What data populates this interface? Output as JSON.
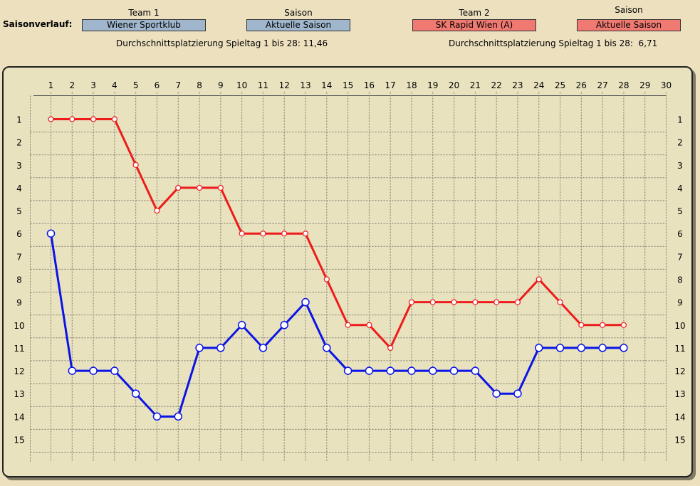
{
  "header": {
    "section_label": "Saisonverlauf:",
    "team1_label": "Team 1",
    "team1_value": "Wiener Sportklub",
    "season1_label": "Saison",
    "season1_value": "Aktuelle Saison",
    "team2_label": "Team 2",
    "team2_value": "SK Rapid Wien (A)",
    "season2_label": "Saison",
    "season2_value": "Aktuelle Saison",
    "avg1_text": "Durchschnittsplatzierung Spieltag 1 bis 28: 11,46",
    "avg2_text": "Durchschnittsplatzierung Spieltag 1 bis 28:  6,71"
  },
  "colors": {
    "team1": "#0a14e6",
    "team2": "#ee1b1b",
    "team1_button": "#9fb6cd",
    "team2_button": "#f07a72"
  },
  "chart_data": {
    "type": "line",
    "title": "",
    "xlabel": "",
    "ylabel": "",
    "x": [
      1,
      2,
      3,
      4,
      5,
      6,
      7,
      8,
      9,
      10,
      11,
      12,
      13,
      14,
      15,
      16,
      17,
      18,
      19,
      20,
      21,
      22,
      23,
      24,
      25,
      26,
      27,
      28
    ],
    "xlim": [
      1,
      30
    ],
    "ylim": [
      1,
      15
    ],
    "y_inverted": true,
    "grid": true,
    "x_ticks": [
      "1",
      "2",
      "3",
      "4",
      "5",
      "6",
      "7",
      "8",
      "9",
      "10",
      "11",
      "12",
      "13",
      "14",
      "15",
      "16",
      "17",
      "18",
      "19",
      "20",
      "21",
      "22",
      "23",
      "24",
      "25",
      "26",
      "27",
      "28",
      "29",
      "30"
    ],
    "y_ticks": [
      "1",
      "2",
      "3",
      "4",
      "5",
      "6",
      "7",
      "8",
      "9",
      "10",
      "11",
      "12",
      "13",
      "14",
      "15"
    ],
    "series": [
      {
        "name": "SK Rapid Wien (A)",
        "color": "#ee1b1b",
        "values": [
          1,
          1,
          1,
          1,
          3,
          5,
          4,
          4,
          4,
          6,
          6,
          6,
          6,
          8,
          10,
          10,
          11,
          9,
          9,
          9,
          9,
          9,
          9,
          8,
          9,
          10,
          10,
          10
        ]
      },
      {
        "name": "Wiener Sportklub",
        "color": "#0a14e6",
        "values": [
          6,
          12,
          12,
          12,
          13,
          14,
          14,
          11,
          11,
          10,
          11,
          10,
          9,
          11,
          12,
          12,
          12,
          12,
          12,
          12,
          12,
          13,
          13,
          11,
          11,
          11,
          11,
          11
        ]
      }
    ]
  }
}
